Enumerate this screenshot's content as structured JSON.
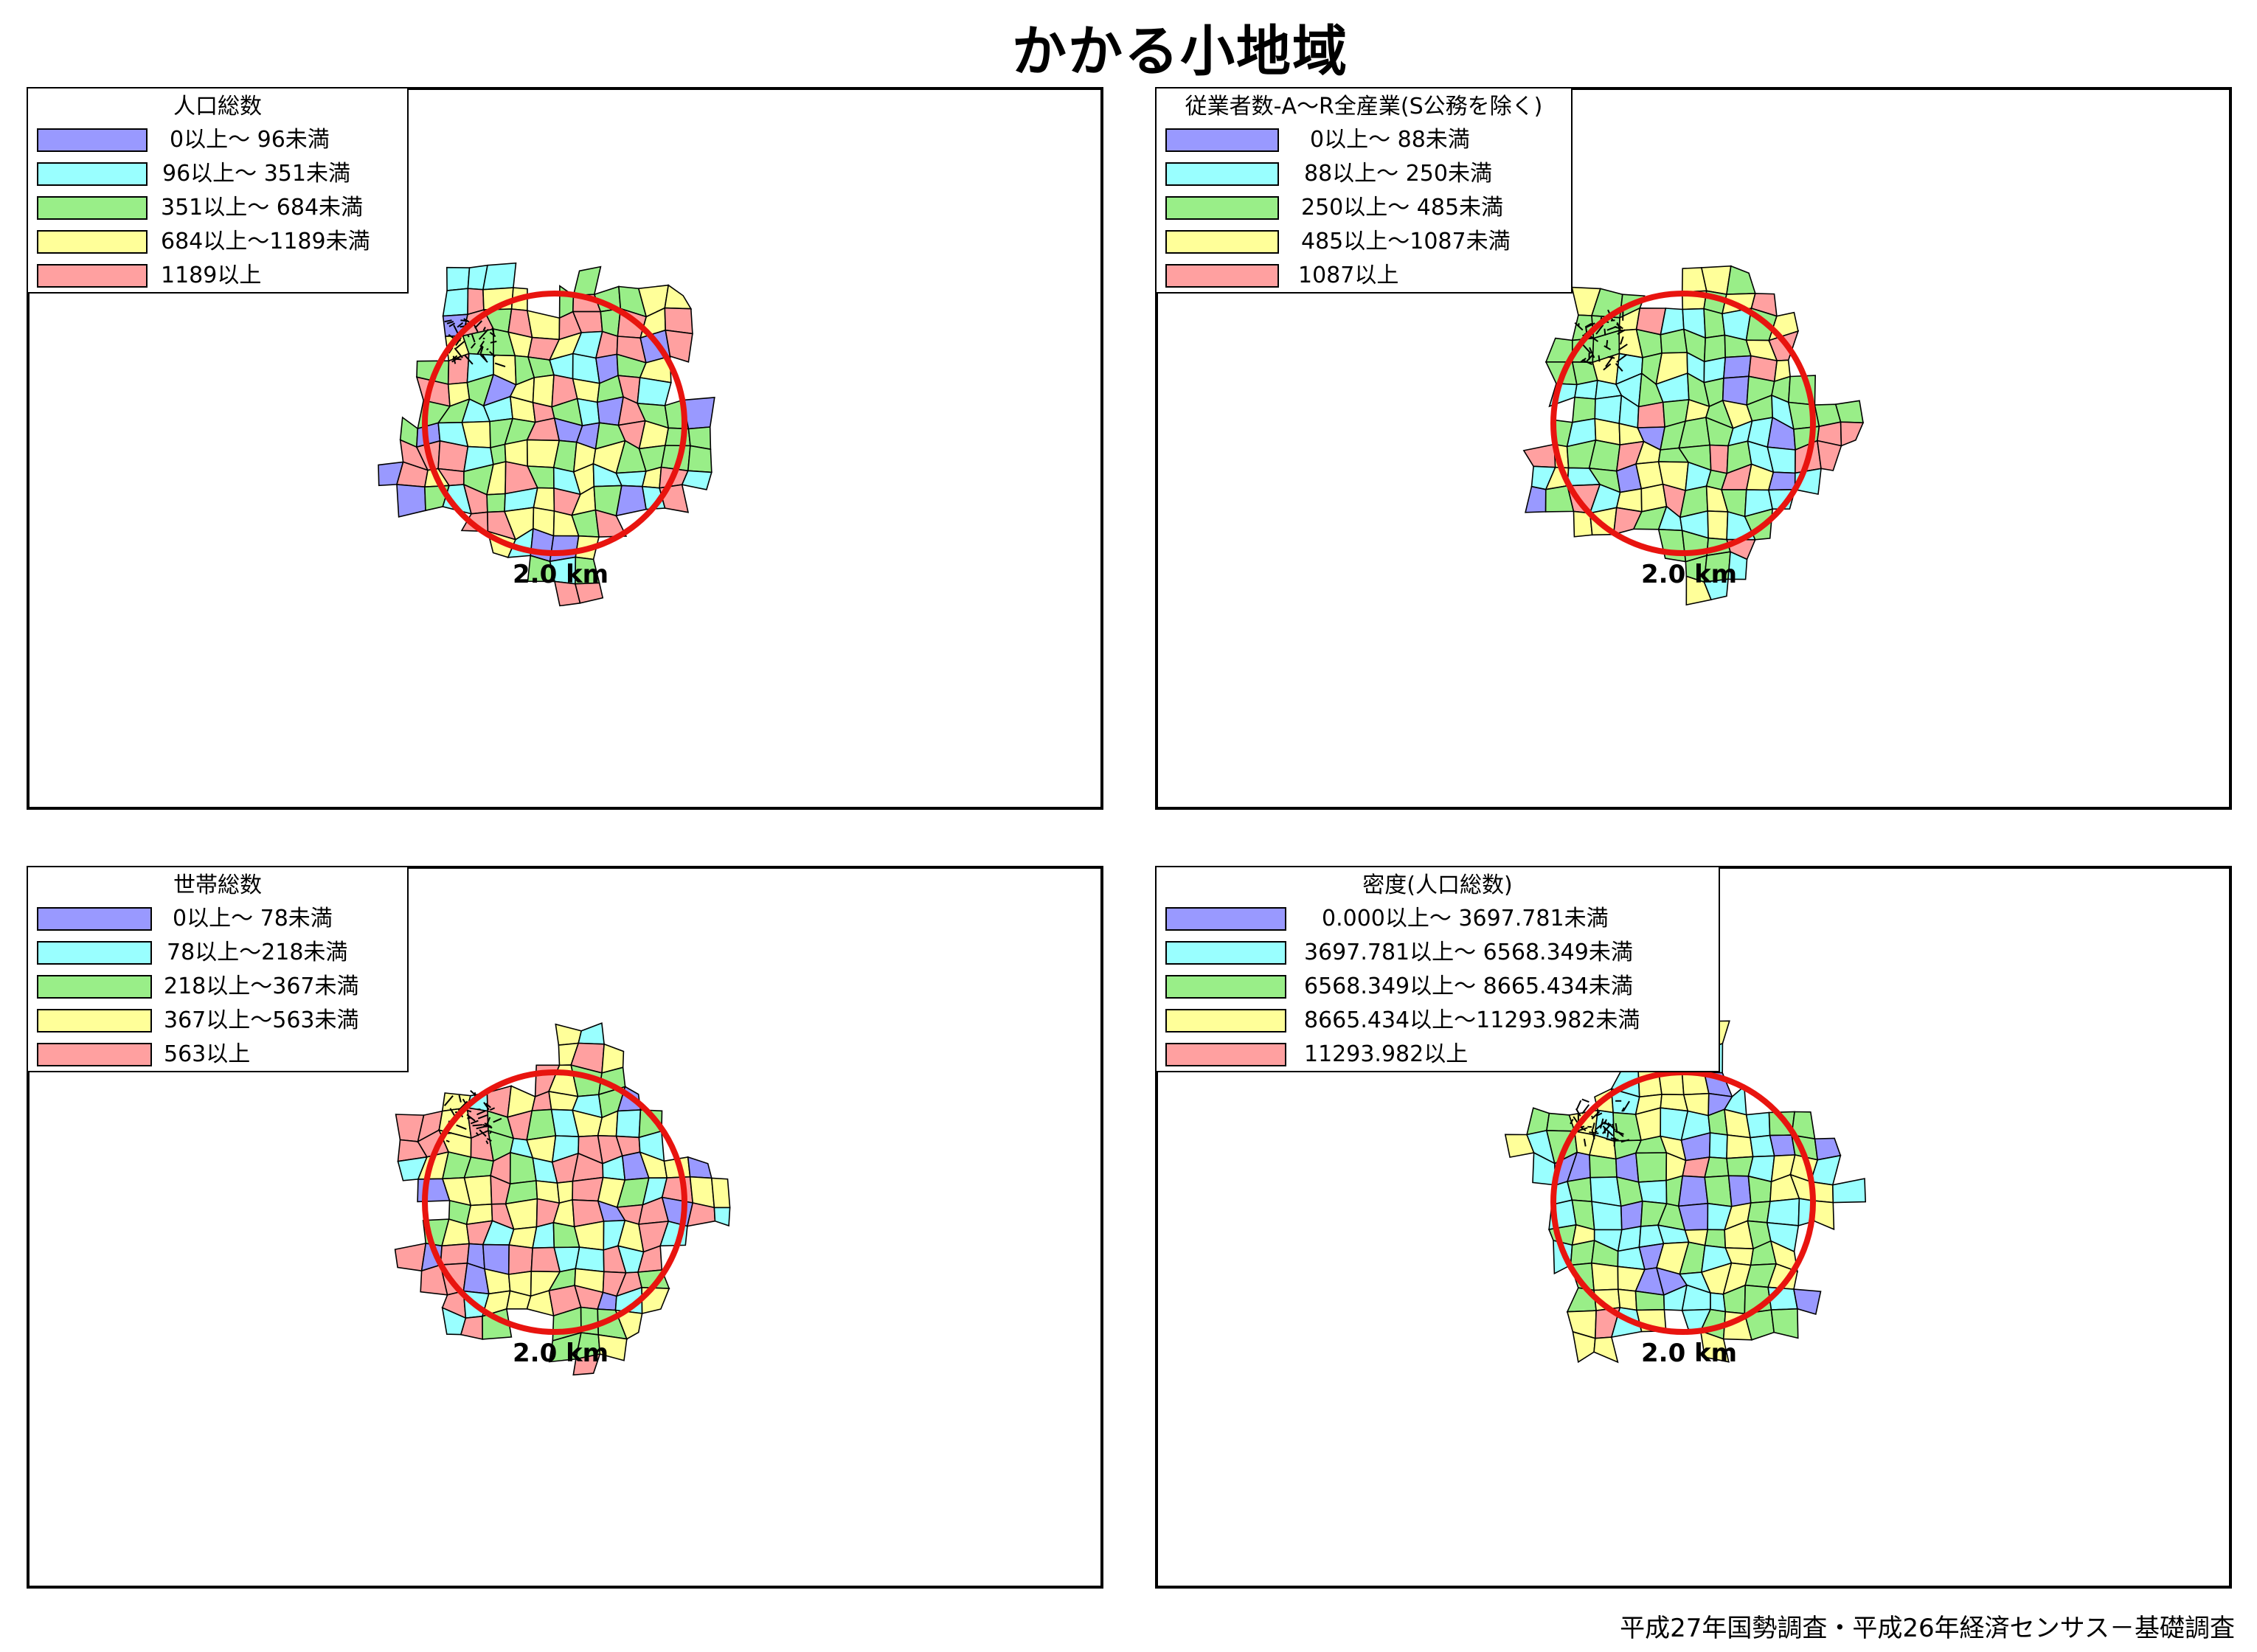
{
  "page_title": "かかる小地域",
  "footer_source": "平成27年国勢調査・平成26年経済センサス－基礎調査",
  "ring_label": "2.0 km",
  "colors": {
    "class1": "#9999ff",
    "class2": "#99ffff",
    "class3": "#99ee88",
    "class4": "#ffff99",
    "class5": "#ffa0a0",
    "ring": "#e8140f"
  },
  "maps": [
    {
      "legend_title": "人口総数",
      "classes": [
        "0以上～ 96未満",
        "96以上～ 351未満",
        "351以上～ 684未満",
        "684以上～1189未満",
        "1189以上"
      ]
    },
    {
      "legend_title": "従業者数-A～R全産業(S公務を除く)",
      "classes": [
        "0以上～ 88未満",
        "88以上～ 250未満",
        "250以上～ 485未満",
        "485以上～1087未満",
        "1087以上"
      ]
    },
    {
      "legend_title": "世帯総数",
      "classes": [
        "0以上～ 78未満",
        "78以上～218未満",
        "218以上～367未満",
        "367以上～563未満",
        "563以上"
      ]
    },
    {
      "legend_title": "密度(人口総数)",
      "classes": [
        "0.000以上～ 3697.781未満",
        "3697.781以上～ 6568.349未満",
        "6568.349以上～ 8665.434未満",
        "8665.434以上～11293.982未満",
        "11293.982以上"
      ]
    }
  ]
}
